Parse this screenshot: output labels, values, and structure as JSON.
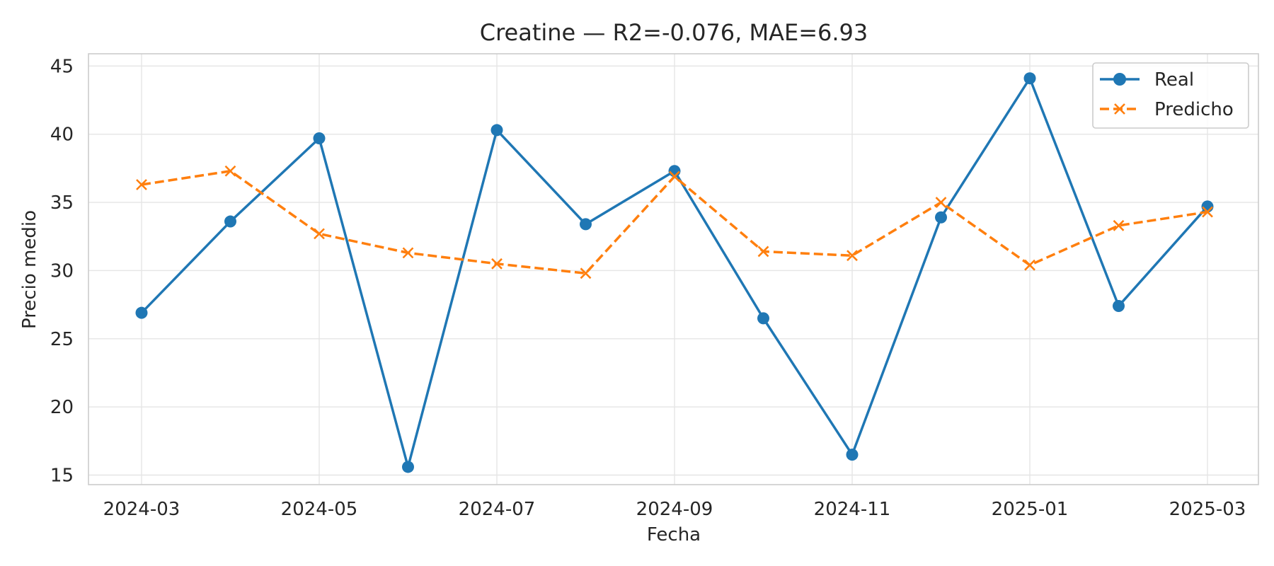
{
  "chart_data": {
    "type": "line",
    "title": "Creatine — R2=-0.076, MAE=6.93",
    "xlabel": "Fecha",
    "ylabel": "Precio medio",
    "x": [
      "2024-03",
      "2024-04",
      "2024-05",
      "2024-06",
      "2024-07",
      "2024-08",
      "2024-09",
      "2024-10",
      "2024-11",
      "2024-12",
      "2025-01",
      "2025-02",
      "2025-03"
    ],
    "x_ticks": [
      "2024-03",
      "2024-05",
      "2024-07",
      "2024-09",
      "2024-11",
      "2025-01",
      "2025-03"
    ],
    "y_ticks": [
      15,
      20,
      25,
      30,
      35,
      40,
      45
    ],
    "ylim": [
      14.3,
      45.9
    ],
    "grid": true,
    "legend_position": "top-right",
    "series": [
      {
        "name": "Real",
        "color": "#1f77b4",
        "style": "solid",
        "marker": "circle",
        "values": [
          26.9,
          33.6,
          39.7,
          15.6,
          40.3,
          33.4,
          37.3,
          26.5,
          16.5,
          33.9,
          44.1,
          27.4,
          34.7
        ]
      },
      {
        "name": "Predicho",
        "color": "#ff7f0e",
        "style": "dashed",
        "marker": "x",
        "values": [
          36.3,
          37.3,
          32.7,
          31.3,
          30.5,
          29.8,
          36.9,
          31.4,
          31.1,
          35.0,
          30.4,
          33.3,
          34.3
        ]
      }
    ]
  }
}
